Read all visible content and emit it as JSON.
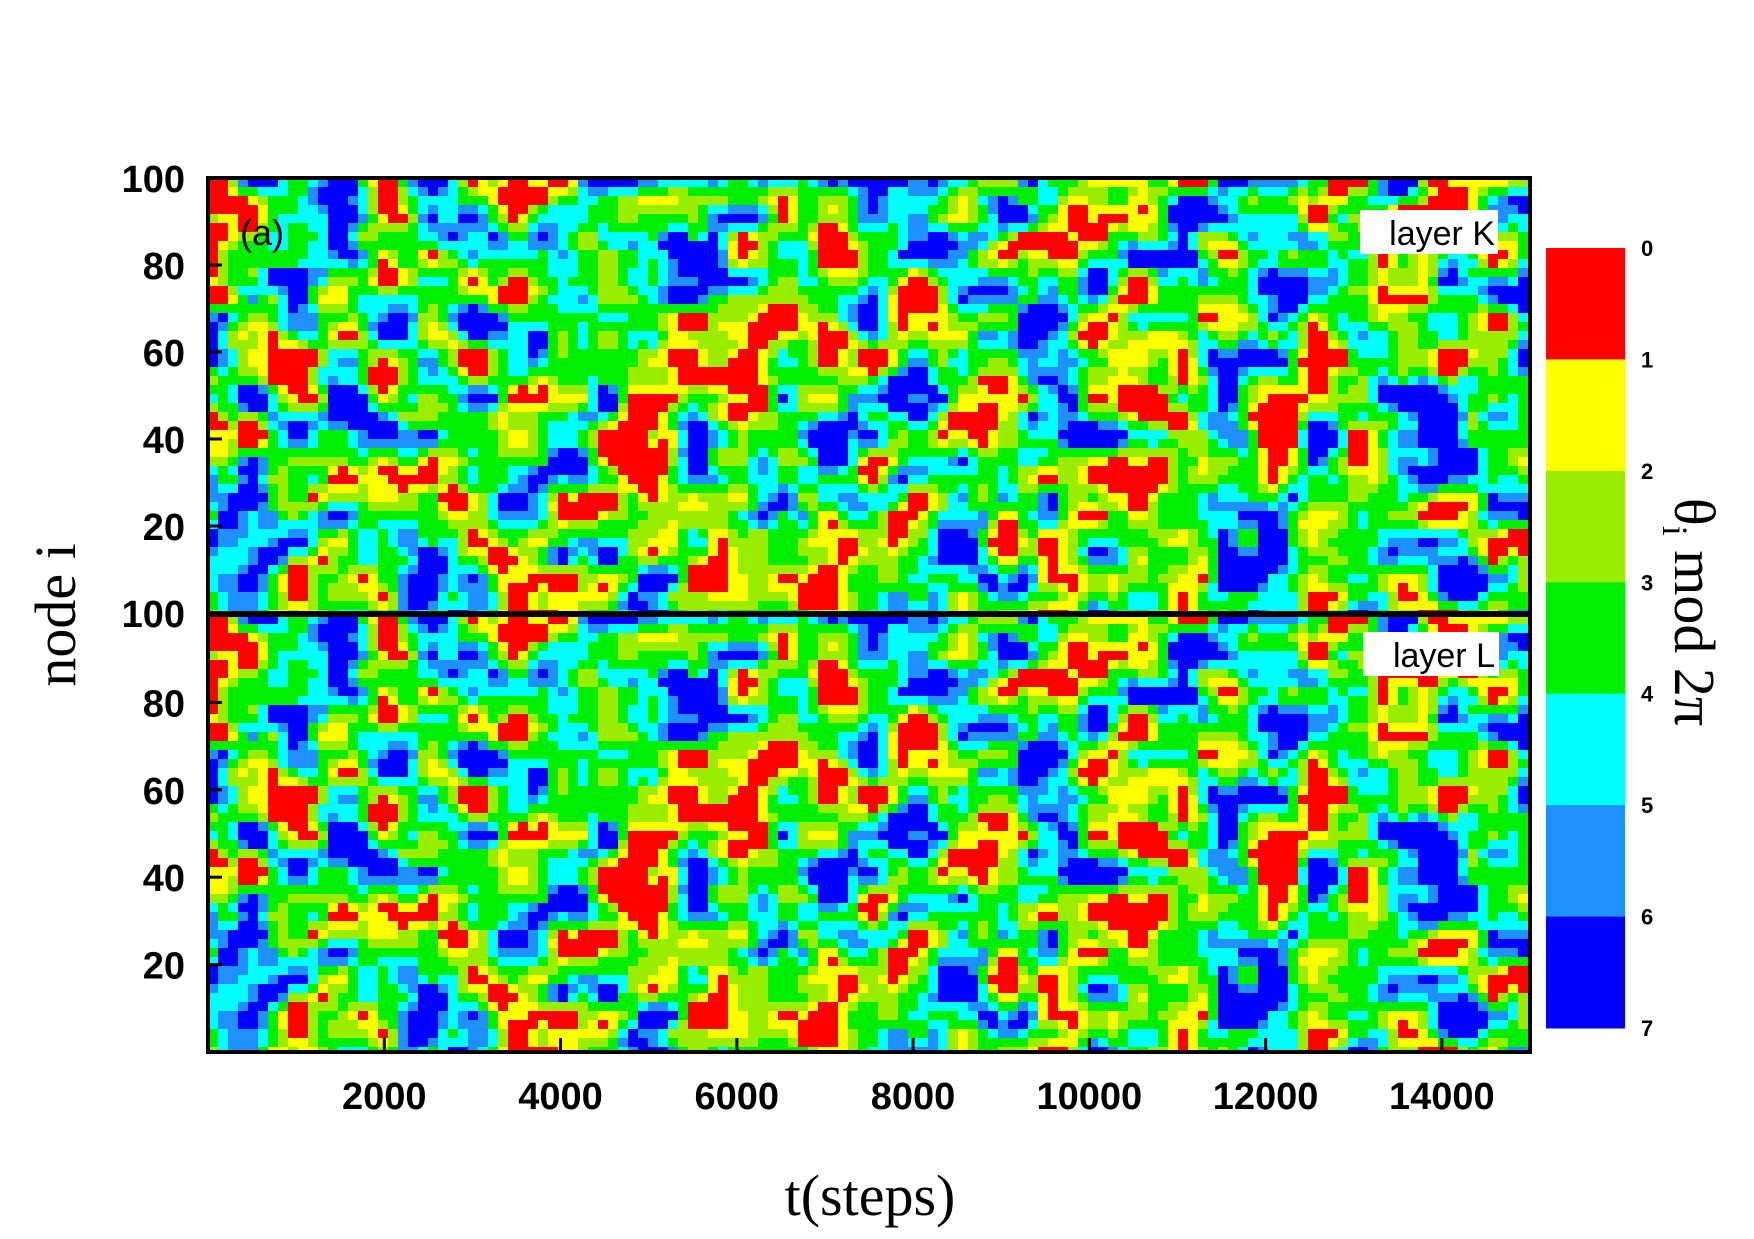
{
  "chart_data": {
    "type": "heatmap",
    "panel_label": "(a)",
    "xlabel": "t(steps)",
    "ylabel": "node i",
    "colorbar_label_main": "θ",
    "colorbar_label_sub": "i",
    "colorbar_label_rest": " mod 2π",
    "xlim": [
      0,
      15000
    ],
    "x_ticks": [
      "2000",
      "4000",
      "6000",
      "8000",
      "10000",
      "12000",
      "14000"
    ],
    "x_tick_values": [
      2000,
      4000,
      6000,
      8000,
      10000,
      12000,
      14000
    ],
    "colorbar": {
      "levels": [
        "0",
        "1",
        "2",
        "3",
        "4",
        "5",
        "6",
        "7"
      ],
      "colors": [
        "#ff0000",
        "#ffff00",
        "#99ee00",
        "#00ee00",
        "#00ffff",
        "#1e90ff",
        "#0000ff"
      ]
    },
    "panels": [
      {
        "name": "layer K",
        "ylim": [
          0,
          100
        ],
        "y_ticks": [
          "20",
          "40",
          "60",
          "80",
          "100"
        ],
        "y_tick_values": [
          20,
          40,
          60,
          80,
          100
        ],
        "baseline_tick": "100",
        "seed": 7
      },
      {
        "name": "layer L",
        "ylim": [
          0,
          100
        ],
        "y_ticks": [
          "20",
          "40",
          "60",
          "80",
          "100"
        ],
        "y_tick_values": [
          20,
          40,
          60,
          80,
          100
        ],
        "seed": 7
      }
    ]
  }
}
